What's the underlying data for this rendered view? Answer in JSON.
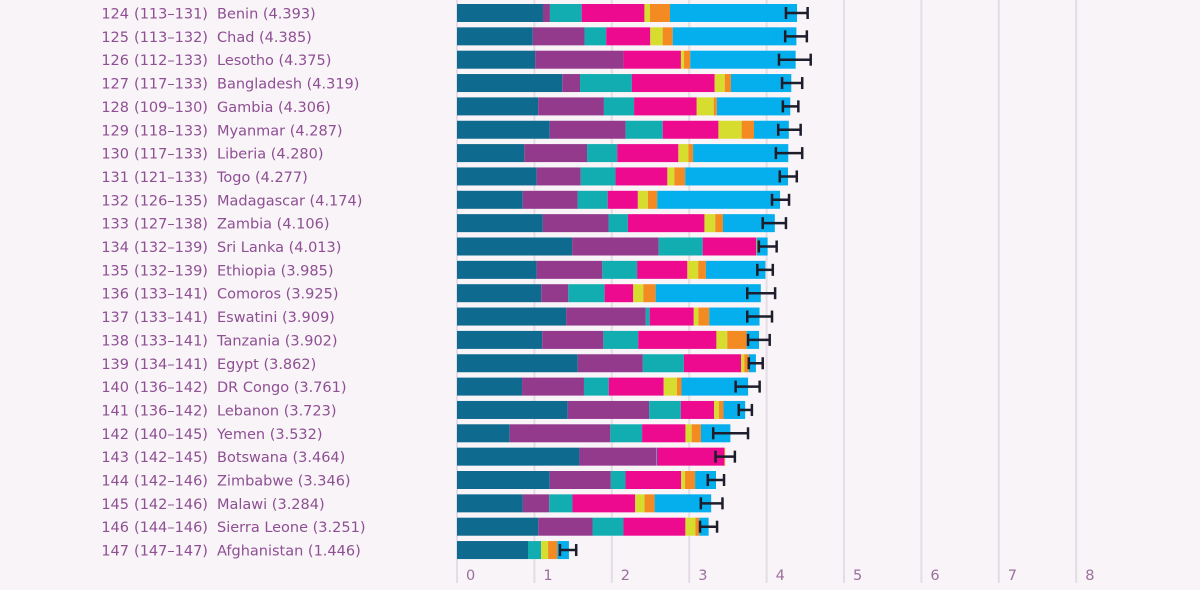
{
  "chart_data": {
    "type": "bar",
    "orientation": "horizontal",
    "stacked": true,
    "title": "",
    "xlabel": "",
    "ylabel": "",
    "xlim": [
      0,
      8
    ],
    "x_ticks": [
      "0",
      "1",
      "2",
      "3",
      "4",
      "5",
      "6",
      "7",
      "8"
    ],
    "grid": true,
    "legend": "none",
    "segment_colors": [
      "#0e6a8e",
      "#943a8c",
      "#12adb0",
      "#ee0a8e",
      "#d7dd2f",
      "#f48a22",
      "#05aeec"
    ],
    "error_bar_color": "#1d1d2b",
    "rows": [
      {
        "rank": "124",
        "range": "(113–131)",
        "label": "Benin (4.393)",
        "score": 4.393,
        "segments": [
          1.11,
          0.09,
          0.41,
          0.81,
          0.07,
          0.26,
          1.64
        ],
        "ci": [
          4.25,
          4.53
        ]
      },
      {
        "rank": "125",
        "range": "(113–132)",
        "label": "Chad (4.385)",
        "score": 4.385,
        "segments": [
          0.98,
          0.67,
          0.28,
          0.57,
          0.16,
          0.13,
          1.6
        ],
        "ci": [
          4.24,
          4.52
        ]
      },
      {
        "rank": "126",
        "range": "(112–133)",
        "label": "Lesotho (4.375)",
        "score": 4.375,
        "segments": [
          1.01,
          1.14,
          0.0,
          0.74,
          0.04,
          0.08,
          1.36
        ],
        "ci": [
          4.16,
          4.57
        ]
      },
      {
        "rank": "127",
        "range": "(117–133)",
        "label": "Bangladesh (4.319)",
        "score": 4.319,
        "segments": [
          1.36,
          0.23,
          0.67,
          1.07,
          0.13,
          0.08,
          0.78
        ],
        "ci": [
          4.2,
          4.46
        ]
      },
      {
        "rank": "128",
        "range": "(109–130)",
        "label": "Gambia (4.306)",
        "score": 4.306,
        "segments": [
          1.05,
          0.85,
          0.39,
          0.81,
          0.22,
          0.04,
          0.95
        ],
        "ci": [
          4.21,
          4.41
        ]
      },
      {
        "rank": "129",
        "range": "(118–133)",
        "label": "Myanmar (4.287)",
        "score": 4.287,
        "segments": [
          1.2,
          0.98,
          0.48,
          0.72,
          0.3,
          0.16,
          0.45
        ],
        "ci": [
          4.15,
          4.44
        ]
      },
      {
        "rank": "130",
        "range": "(117–133)",
        "label": "Liberia (4.280)",
        "score": 4.28,
        "segments": [
          0.87,
          0.81,
          0.39,
          0.79,
          0.13,
          0.06,
          1.23
        ],
        "ci": [
          4.12,
          4.46
        ]
      },
      {
        "rank": "131",
        "range": "(121–133)",
        "label": "Togo (4.277)",
        "score": 4.277,
        "segments": [
          1.03,
          0.57,
          0.45,
          0.67,
          0.09,
          0.14,
          1.33
        ],
        "ci": [
          4.17,
          4.39
        ]
      },
      {
        "rank": "132",
        "range": "(126–135)",
        "label": "Madagascar (4.174)",
        "score": 4.174,
        "segments": [
          0.85,
          0.71,
          0.39,
          0.39,
          0.13,
          0.12,
          1.59
        ],
        "ci": [
          4.07,
          4.29
        ]
      },
      {
        "rank": "133",
        "range": "(127–138)",
        "label": "Zambia (4.106)",
        "score": 4.106,
        "segments": [
          1.11,
          0.85,
          0.25,
          0.99,
          0.14,
          0.1,
          0.67
        ],
        "ci": [
          3.95,
          4.25
        ]
      },
      {
        "rank": "134",
        "range": "(132–139)",
        "label": "Sri Lanka (4.013)",
        "score": 4.013,
        "segments": [
          1.49,
          1.12,
          0.57,
          0.69,
          0.0,
          0.01,
          0.14
        ],
        "ci": [
          3.9,
          4.13
        ]
      },
      {
        "rank": "135",
        "range": "(132–139)",
        "label": "Ethiopia (3.985)",
        "score": 3.985,
        "segments": [
          1.03,
          0.85,
          0.45,
          0.65,
          0.14,
          0.1,
          0.77
        ],
        "ci": [
          3.88,
          4.08
        ]
      },
      {
        "rank": "136",
        "range": "(133–141)",
        "label": "Comoros (3.925)",
        "score": 3.925,
        "segments": [
          1.09,
          0.35,
          0.47,
          0.37,
          0.13,
          0.16,
          1.36
        ],
        "ci": [
          3.75,
          4.11
        ]
      },
      {
        "rank": "137",
        "range": "(133–141)",
        "label": "Eswatini (3.909)",
        "score": 3.909,
        "segments": [
          1.41,
          1.03,
          0.05,
          0.57,
          0.06,
          0.14,
          0.65
        ],
        "ci": [
          3.75,
          4.07
        ]
      },
      {
        "rank": "138",
        "range": "(133–141)",
        "label": "Tanzania (3.902)",
        "score": 3.902,
        "segments": [
          1.1,
          0.79,
          0.45,
          1.01,
          0.14,
          0.25,
          0.16
        ],
        "ci": [
          3.76,
          4.04
        ]
      },
      {
        "rank": "139",
        "range": "(134–141)",
        "label": "Egypt (3.862)",
        "score": 3.862,
        "segments": [
          1.56,
          0.84,
          0.53,
          0.74,
          0.04,
          0.06,
          0.09
        ],
        "ci": [
          3.77,
          3.95
        ]
      },
      {
        "rank": "140",
        "range": "(136–142)",
        "label": "DR Congo (3.761)",
        "score": 3.761,
        "segments": [
          0.84,
          0.8,
          0.32,
          0.71,
          0.17,
          0.06,
          0.86
        ],
        "ci": [
          3.6,
          3.91
        ]
      },
      {
        "rank": "141",
        "range": "(136–142)",
        "label": "Lebanon (3.723)",
        "score": 3.723,
        "segments": [
          1.43,
          1.05,
          0.41,
          0.43,
          0.06,
          0.06,
          0.28
        ],
        "ci": [
          3.64,
          3.81
        ]
      },
      {
        "rank": "142",
        "range": "(140–145)",
        "label": "Yemen (3.532)",
        "score": 3.532,
        "segments": [
          0.68,
          1.3,
          0.41,
          0.56,
          0.08,
          0.12,
          0.38
        ],
        "ci": [
          3.31,
          3.76
        ]
      },
      {
        "rank": "143",
        "range": "(142–145)",
        "label": "Botswana (3.464)",
        "score": 3.464,
        "segments": [
          1.58,
          0.99,
          0.01,
          0.87,
          0.0,
          0.01,
          0.0
        ],
        "ci": [
          3.34,
          3.59
        ]
      },
      {
        "rank": "144",
        "range": "(142–146)",
        "label": "Zimbabwe (3.346)",
        "score": 3.346,
        "segments": [
          1.2,
          0.79,
          0.19,
          0.72,
          0.05,
          0.13,
          0.27
        ],
        "ci": [
          3.24,
          3.45
        ]
      },
      {
        "rank": "145",
        "range": "(142–146)",
        "label": "Malawi (3.284)",
        "score": 3.284,
        "segments": [
          0.85,
          0.34,
          0.3,
          0.81,
          0.12,
          0.13,
          0.73
        ],
        "ci": [
          3.15,
          3.43
        ]
      },
      {
        "rank": "146",
        "range": "(144–146)",
        "label": "Sierra Leone (3.251)",
        "score": 3.251,
        "segments": [
          1.05,
          0.7,
          0.4,
          0.8,
          0.13,
          0.05,
          0.12
        ],
        "ci": [
          3.14,
          3.36
        ]
      },
      {
        "rank": "147",
        "range": "(147–147)",
        "label": "Afghanistan (1.446)",
        "score": 1.446,
        "segments": [
          0.92,
          0.0,
          0.17,
          0.0,
          0.09,
          0.12,
          0.15
        ],
        "ci": [
          1.33,
          1.54
        ]
      }
    ]
  }
}
